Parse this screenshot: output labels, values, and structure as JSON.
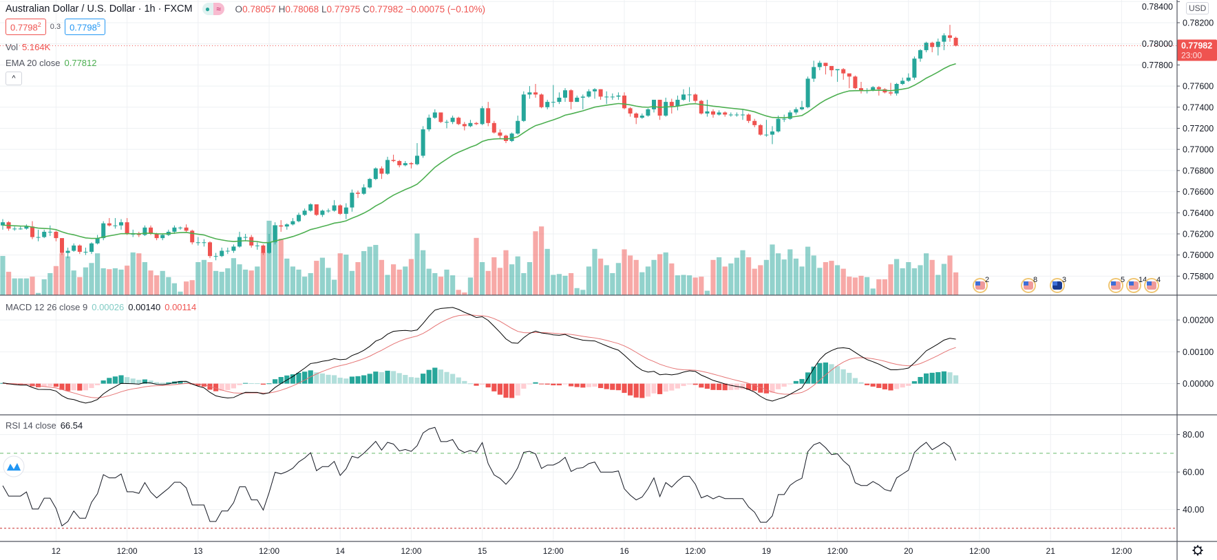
{
  "header": {
    "title": "Australian Dollar / U.S. Dollar · 1h · FXCM",
    "o_label": "O",
    "open": "0.78057",
    "h_label": "H",
    "high": "0.78068",
    "l_label": "L",
    "low": "0.77975",
    "c_label": "C",
    "close": "0.77982",
    "change": "−0.00075 (−0.10%)",
    "market_open_icon": "dot-icon",
    "replay_icon": "wave-icon"
  },
  "trade": {
    "sell": "0.7798",
    "sell_sup": "2",
    "spread": "0.3",
    "buy": "0.7798",
    "buy_sup": "5"
  },
  "volume_legend": {
    "label": "Vol",
    "value": "5.164K"
  },
  "ema_legend": {
    "label": "EMA 20 close",
    "value": "0.77812"
  },
  "macd_legend": {
    "label": "MACD 12 26 close 9",
    "hist": "0.00026",
    "macd": "0.00140",
    "signal": "0.00114"
  },
  "rsi_legend": {
    "label": "RSI 14 close",
    "value": "66.54"
  },
  "collapse_label": "^",
  "price_axis": {
    "currency": "USD",
    "ticks": [
      "0.78400",
      "0.78200",
      "0.78000",
      "0.77800",
      "0.77600",
      "0.77400",
      "0.77200",
      "0.77000",
      "0.76800",
      "0.76600",
      "0.76400",
      "0.76200",
      "0.76000",
      "0.75800"
    ],
    "last_price": "0.77982",
    "countdown": "23:00"
  },
  "macd_axis": {
    "ticks": [
      "0.00200",
      "0.00100",
      "0.00000"
    ]
  },
  "rsi_axis": {
    "ticks": [
      "80.00",
      "60.00",
      "40.00"
    ]
  },
  "events": [
    {
      "flag": "us-flag-icon",
      "count": "2"
    },
    {
      "flag": "us-flag-icon",
      "count": "8"
    },
    {
      "flag": "au-flag-icon",
      "count": "3"
    },
    {
      "flag": "us-flag-icon",
      "count": "5"
    },
    {
      "flag": "us-flag-icon",
      "count": "14"
    },
    {
      "flag": "us-flag-icon",
      "count": "4"
    }
  ],
  "colors": {
    "up": "#26a69a",
    "down": "#ef5350",
    "ema": "#4caf50",
    "macd": "#000000",
    "signal": "#e57373",
    "hist_up_strong": "#26a69a",
    "hist_up_weak": "#b2dfdb",
    "hist_down_weak": "#ffcdd2",
    "hist_down_strong": "#ef5350"
  },
  "chart_data": {
    "type": "candlestick",
    "interval": "1h",
    "x_labels": [
      "12",
      "12:00",
      "13",
      "12:00",
      "14",
      "12:00",
      "15",
      "12:00",
      "16",
      "12:00",
      "19",
      "12:00",
      "20",
      "12:00",
      "21",
      "12:00"
    ],
    "ylim": [
      0.7562,
      0.78415
    ],
    "first_open": 0.7628,
    "close": [
      0.7631,
      0.7625,
      0.7625,
      0.7625,
      0.7627,
      0.7617,
      0.7617,
      0.7622,
      0.7622,
      0.7616,
      0.7602,
      0.7604,
      0.7609,
      0.7603,
      0.7603,
      0.7611,
      0.7616,
      0.763,
      0.7628,
      0.7628,
      0.7631,
      0.762,
      0.762,
      0.7619,
      0.7626,
      0.762,
      0.7616,
      0.7619,
      0.7622,
      0.7626,
      0.7626,
      0.7623,
      0.7612,
      0.7612,
      0.7612,
      0.7599,
      0.7599,
      0.7604,
      0.7604,
      0.7608,
      0.7617,
      0.7617,
      0.7609,
      0.7609,
      0.7602,
      0.7612,
      0.7628,
      0.7627,
      0.7629,
      0.7632,
      0.7638,
      0.7642,
      0.7648,
      0.7638,
      0.7642,
      0.7642,
      0.7647,
      0.7639,
      0.7645,
      0.7659,
      0.7658,
      0.7664,
      0.7672,
      0.7682,
      0.7677,
      0.769,
      0.7689,
      0.7685,
      0.7687,
      0.7686,
      0.7694,
      0.7719,
      0.773,
      0.7735,
      0.7726,
      0.7726,
      0.773,
      0.7724,
      0.7722,
      0.7725,
      0.7724,
      0.7739,
      0.7725,
      0.7716,
      0.7713,
      0.7708,
      0.7715,
      0.7727,
      0.7752,
      0.7754,
      0.7752,
      0.774,
      0.7745,
      0.7745,
      0.7749,
      0.7756,
      0.7745,
      0.7749,
      0.775,
      0.7755,
      0.7757,
      0.775,
      0.775,
      0.775,
      0.7751,
      0.7739,
      0.7734,
      0.773,
      0.7732,
      0.7738,
      0.7747,
      0.7732,
      0.7745,
      0.7741,
      0.7747,
      0.7752,
      0.7752,
      0.7746,
      0.7734,
      0.7736,
      0.7733,
      0.7735,
      0.7733,
      0.7733,
      0.7733,
      0.7733,
      0.7727,
      0.7723,
      0.7714,
      0.7714,
      0.7717,
      0.7729,
      0.7729,
      0.7735,
      0.7738,
      0.774,
      0.7767,
      0.7778,
      0.7782,
      0.7779,
      0.7775,
      0.7776,
      0.7772,
      0.7769,
      0.7758,
      0.7756,
      0.7756,
      0.7759,
      0.7757,
      0.7754,
      0.7753,
      0.7762,
      0.7765,
      0.7768,
      0.7786,
      0.7794,
      0.7801,
      0.7797,
      0.7802,
      0.7808,
      0.78057,
      0.77982
    ],
    "high": [
      0.7634,
      0.7632,
      0.7627,
      0.7627,
      0.7629,
      0.7632,
      0.7624,
      0.7624,
      0.7628,
      0.7623,
      0.7616,
      0.7607,
      0.7611,
      0.761,
      0.7607,
      0.7612,
      0.7619,
      0.7632,
      0.7635,
      0.7635,
      0.7634,
      0.7635,
      0.7624,
      0.7622,
      0.7628,
      0.7628,
      0.7621,
      0.762,
      0.7624,
      0.7628,
      0.7627,
      0.7629,
      0.7624,
      0.7617,
      0.7615,
      0.7613,
      0.7602,
      0.7607,
      0.7607,
      0.761,
      0.7622,
      0.762,
      0.7619,
      0.7612,
      0.761,
      0.762,
      0.7631,
      0.7633,
      0.763,
      0.7635,
      0.764,
      0.7644,
      0.7649,
      0.7648,
      0.7643,
      0.7644,
      0.7652,
      0.7648,
      0.7649,
      0.7662,
      0.7661,
      0.7667,
      0.7673,
      0.7683,
      0.7684,
      0.7693,
      0.7695,
      0.769,
      0.7689,
      0.7688,
      0.7706,
      0.7722,
      0.7733,
      0.7738,
      0.7735,
      0.7728,
      0.7732,
      0.7731,
      0.7726,
      0.7728,
      0.7726,
      0.7741,
      0.7745,
      0.7727,
      0.7719,
      0.7714,
      0.7716,
      0.7732,
      0.7755,
      0.776,
      0.7762,
      0.7753,
      0.7747,
      0.7761,
      0.7754,
      0.7758,
      0.7757,
      0.7751,
      0.7752,
      0.7757,
      0.7758,
      0.7757,
      0.7755,
      0.7753,
      0.7754,
      0.7754,
      0.774,
      0.7735,
      0.7734,
      0.7739,
      0.7747,
      0.7747,
      0.7749,
      0.7748,
      0.7751,
      0.7757,
      0.7759,
      0.7753,
      0.7747,
      0.7747,
      0.7738,
      0.7737,
      0.7736,
      0.7735,
      0.7735,
      0.7738,
      0.7734,
      0.7729,
      0.7724,
      0.7728,
      0.7722,
      0.7732,
      0.7733,
      0.7737,
      0.774,
      0.7746,
      0.7769,
      0.7784,
      0.7784,
      0.7782,
      0.7778,
      0.7776,
      0.7777,
      0.7771,
      0.777,
      0.7764,
      0.7758,
      0.776,
      0.776,
      0.7758,
      0.7763,
      0.7763,
      0.7768,
      0.7772,
      0.7788,
      0.7795,
      0.7802,
      0.7802,
      0.7805,
      0.781,
      0.7818,
      0.78068
    ],
    "low": [
      0.7624,
      0.7623,
      0.7623,
      0.7624,
      0.7624,
      0.7615,
      0.7613,
      0.7616,
      0.7618,
      0.7613,
      0.76,
      0.7597,
      0.7603,
      0.7601,
      0.76,
      0.7601,
      0.761,
      0.7614,
      0.7627,
      0.7625,
      0.7624,
      0.7619,
      0.7617,
      0.7617,
      0.7618,
      0.7619,
      0.7614,
      0.7614,
      0.7618,
      0.762,
      0.7624,
      0.7621,
      0.761,
      0.7609,
      0.7608,
      0.7597,
      0.7595,
      0.7598,
      0.7601,
      0.7602,
      0.7607,
      0.7613,
      0.7607,
      0.7605,
      0.76,
      0.7601,
      0.761,
      0.7622,
      0.7624,
      0.7628,
      0.7631,
      0.7637,
      0.7641,
      0.7637,
      0.7636,
      0.764,
      0.7641,
      0.7638,
      0.7634,
      0.7641,
      0.7654,
      0.7657,
      0.7663,
      0.7671,
      0.7672,
      0.7676,
      0.7688,
      0.7683,
      0.7684,
      0.7682,
      0.7685,
      0.7692,
      0.7717,
      0.7729,
      0.7725,
      0.772,
      0.7724,
      0.7723,
      0.7718,
      0.7721,
      0.7723,
      0.7723,
      0.7722,
      0.7715,
      0.771,
      0.7706,
      0.7707,
      0.7714,
      0.7726,
      0.7748,
      0.7749,
      0.7739,
      0.7738,
      0.774,
      0.7743,
      0.7745,
      0.7738,
      0.7745,
      0.7738,
      0.7749,
      0.7748,
      0.7747,
      0.7743,
      0.7747,
      0.7747,
      0.7738,
      0.7731,
      0.7724,
      0.7729,
      0.7731,
      0.7735,
      0.7728,
      0.7731,
      0.7734,
      0.7737,
      0.7746,
      0.7745,
      0.7744,
      0.7733,
      0.7731,
      0.773,
      0.7732,
      0.7731,
      0.7731,
      0.7731,
      0.7728,
      0.7725,
      0.7721,
      0.7713,
      0.7712,
      0.7705,
      0.7716,
      0.7726,
      0.7728,
      0.7733,
      0.7737,
      0.7739,
      0.7764,
      0.7775,
      0.7771,
      0.7769,
      0.7764,
      0.7766,
      0.7758,
      0.7757,
      0.7753,
      0.7753,
      0.7755,
      0.7751,
      0.7753,
      0.7751,
      0.7751,
      0.7761,
      0.7764,
      0.7766,
      0.7783,
      0.7792,
      0.7792,
      0.7789,
      0.7794,
      0.7802,
      0.77975
    ],
    "volume_unit": "K",
    "volume": [
      8.9,
      5.3,
      3.8,
      3.8,
      3.8,
      4.2,
      0.5,
      3.6,
      5.0,
      6.6,
      9.5,
      8.8,
      5.6,
      4.1,
      6.3,
      7.3,
      9.5,
      6.1,
      5.9,
      6.1,
      5.8,
      6.7,
      9.7,
      9.5,
      7.5,
      5.6,
      4.5,
      5.5,
      4.1,
      2.7,
      0.8,
      3.1,
      3.4,
      7.5,
      8.0,
      7.5,
      5.5,
      5.3,
      6.1,
      8.4,
      7.0,
      5.8,
      5.6,
      6.5,
      9.7,
      16.9,
      15.9,
      12.8,
      8.3,
      6.5,
      5.8,
      4.2,
      5.0,
      7.8,
      8.5,
      6.2,
      3.5,
      9.5,
      9.2,
      5.5,
      7.5,
      10.0,
      11.0,
      11.4,
      8.0,
      4.6,
      7.0,
      5.8,
      6.5,
      8.2,
      14.0,
      10.2,
      6.0,
      5.0,
      4.2,
      5.8,
      4.5,
      1.2,
      0.6,
      4.0,
      13.0,
      7.5,
      5.5,
      8.6,
      6.2,
      10.2,
      7.0,
      8.8,
      5.0,
      7.5,
      14.5,
      15.6,
      10.5,
      4.6,
      4.8,
      4.4,
      5.0,
      1.6,
      1.2,
      6.5,
      10.5,
      8.3,
      6.8,
      5.0,
      7.3,
      10.4,
      9.0,
      8.0,
      5.2,
      6.5,
      8.0,
      9.3,
      9.7,
      7.2,
      4.5,
      4.6,
      4.5,
      4.0,
      4.2,
      1.0,
      8.0,
      8.6,
      6.5,
      7.2,
      8.5,
      10.2,
      8.6,
      6.0,
      6.8,
      8.0,
      11.5,
      9.5,
      8.1,
      10.4,
      8.3,
      6.5,
      11.0,
      9.0,
      6.2,
      7.5,
      7.8,
      6.8,
      6.0,
      4.2,
      4.0,
      4.4,
      4.1,
      1.5,
      3.6,
      3.6,
      7.0,
      8.2,
      6.1,
      7.5,
      6.1,
      6.8,
      9.5,
      8.0,
      4.6,
      7.1,
      9.0,
      5.164
    ],
    "ema_period": 20,
    "macd": {
      "fast": 12,
      "slow": 26,
      "signal": 9,
      "ylim": [
        -0.00098,
        0.00278
      ]
    },
    "rsi": {
      "period": 14,
      "overbought": 70,
      "oversold": 30,
      "ylim": [
        23,
        90.5
      ]
    }
  }
}
